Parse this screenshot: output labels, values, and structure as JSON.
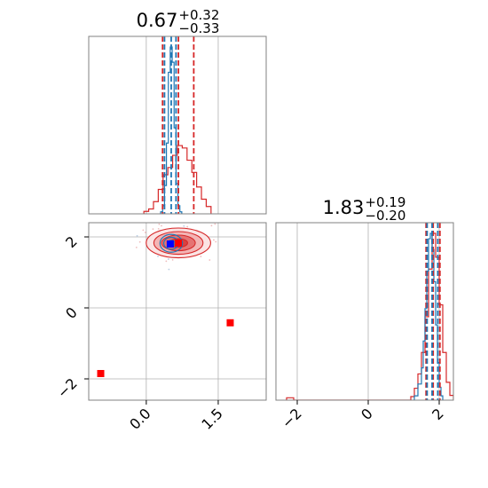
{
  "chart_data": {
    "type": "corner",
    "parameters": [
      {
        "title_value": "0.67",
        "title_plus": "+0.32",
        "title_minus": "−0.33",
        "range": [
          -1.2,
          2.5
        ],
        "ticks": [
          "0.0",
          "1.5"
        ],
        "tick_values": [
          0.0,
          1.5
        ]
      },
      {
        "title_value": "1.83",
        "title_plus": "+0.19",
        "title_minus": "−0.20",
        "range": [
          -2.6,
          2.4
        ],
        "ticks": [
          "−2",
          "0",
          "2"
        ],
        "tick_values": [
          -2,
          0,
          2
        ]
      }
    ],
    "marginal_1": {
      "red_quantiles": [
        0.34,
        0.67,
        0.99
      ],
      "blue_quantiles": [
        0.38,
        0.52,
        0.62
      ],
      "red_hist": {
        "bins": [
          -0.05,
          0.05,
          0.15,
          0.25,
          0.35,
          0.45,
          0.55,
          0.65,
          0.75,
          0.85,
          0.95,
          1.05,
          1.15,
          1.25,
          1.35
        ],
        "counts": [
          1,
          2,
          5,
          10,
          16,
          19,
          24,
          28,
          27,
          22,
          17,
          11,
          6,
          3
        ]
      },
      "blue_hist": {
        "bins": [
          0.3,
          0.34,
          0.38,
          0.42,
          0.46,
          0.5,
          0.54,
          0.58,
          0.62,
          0.66,
          0.7,
          0.74
        ],
        "counts": [
          2,
          8,
          28,
          70,
          140,
          165,
          150,
          85,
          30,
          8,
          2
        ]
      }
    },
    "marginal_2": {
      "red_quantiles": [
        1.63,
        1.83,
        2.02
      ],
      "blue_quantiles": [
        1.66,
        1.8,
        1.96
      ],
      "red_hist": {
        "bins": [
          -2.3,
          -2.1,
          1.2,
          1.3,
          1.4,
          1.5,
          1.6,
          1.7,
          1.8,
          1.9,
          2.0,
          2.1,
          2.2,
          2.3,
          2.4
        ],
        "counts": [
          2,
          0,
          3,
          10,
          22,
          40,
          70,
          110,
          140,
          120,
          80,
          40,
          15,
          4
        ]
      },
      "blue_hist": {
        "bins": [
          1.3,
          1.4,
          1.5,
          1.55,
          1.6,
          1.65,
          1.7,
          1.75,
          1.8,
          1.85,
          1.9,
          1.95,
          2.0,
          2.05,
          2.1
        ],
        "counts": [
          4,
          15,
          30,
          55,
          85,
          120,
          150,
          155,
          140,
          110,
          70,
          35,
          12,
          4
        ]
      }
    },
    "joint": {
      "red_contour_center": [
        0.67,
        1.83
      ],
      "red_contour_sigma": [
        0.32,
        0.2
      ],
      "blue_contour_center": [
        0.52,
        1.82
      ],
      "blue_contour_sigma": [
        0.13,
        0.14
      ],
      "markers": [
        {
          "x": 0.5,
          "y": 1.8,
          "color": "#0000ff"
        },
        {
          "x": 0.67,
          "y": 1.83,
          "color": "#ff0000"
        },
        {
          "x": 1.75,
          "y": -0.42,
          "color": "#ff0000"
        },
        {
          "x": -0.95,
          "y": -1.85,
          "color": "#ff0000"
        }
      ]
    },
    "colors": {
      "red": "#d62728",
      "red_marker": "#ff0000",
      "blue": "#1f77b4",
      "blue_marker": "#0000ff"
    }
  }
}
